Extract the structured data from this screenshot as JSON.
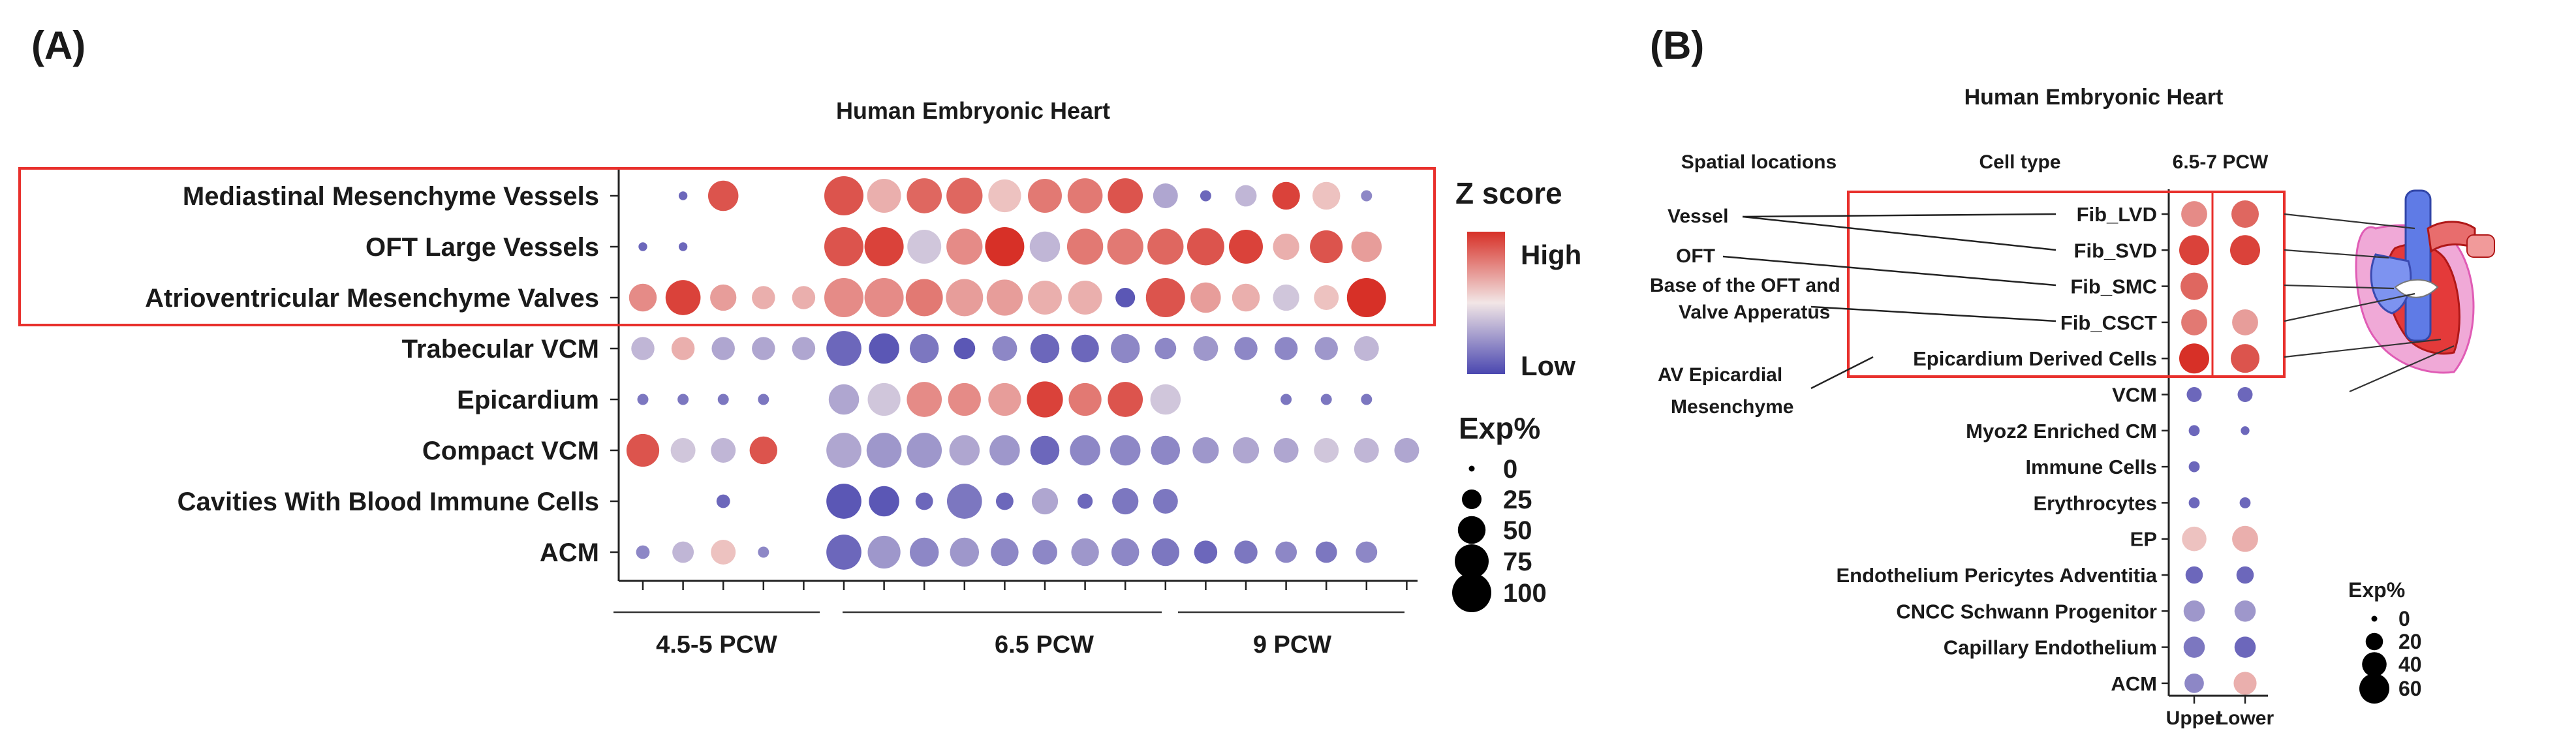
{
  "panel_a": {
    "panel_label": "(A)",
    "title": "Human Embryonic Heart",
    "legend": {
      "zscore_title": "Z score",
      "zscore_high": "High",
      "zscore_low": "Low",
      "exp_title": "Exp%",
      "exp_ticks": [
        "0",
        "25",
        "50",
        "75",
        "100"
      ]
    },
    "group_labels": [
      "4.5-5 PCW",
      "6.5 PCW",
      "9 PCW"
    ]
  },
  "panel_b": {
    "panel_label": "(B)",
    "title": "Human Embryonic Heart",
    "col_headers": [
      "Spatial locations",
      "Cell type",
      "6.5-7 PCW"
    ],
    "spatial_labels": [
      "Vessel",
      "OFT",
      "Base of the OFT and",
      "Valve Apperatus",
      "AV Epicardial",
      "Mesenchyme"
    ],
    "legend": {
      "exp_title": "Exp%",
      "exp_ticks": [
        "0",
        "20",
        "40",
        "60"
      ]
    }
  },
  "colors": {
    "high": "#d73027",
    "mid": "#f2e6e6",
    "low": "#4a47b0",
    "highlight_box": "#e8302c"
  },
  "chart_data": [
    {
      "type": "scatter",
      "subtype": "dot-plot",
      "title": "Human Embryonic Heart",
      "rows": [
        "Mediastinal Mesenchyme Vessels",
        "OFT Large Vessels",
        "Atrioventricular Mesenchyme Valves",
        "Trabecular VCM",
        "Epicardium",
        "Compact VCM",
        "Cavities With Blood Immune Cells",
        "ACM"
      ],
      "column_groups": [
        {
          "name": "4.5-5 PCW",
          "columns": 5
        },
        {
          "name": "6.5 PCW",
          "columns": 9
        },
        {
          "name": "9 PCW",
          "columns": 6
        }
      ],
      "highlighted_rows": [
        "Mediastinal Mesenchyme Vessels",
        "OFT Large Vessels",
        "Atrioventricular Mesenchyme Valves"
      ],
      "zscore": [
        [
          null,
          -0.8,
          0.8,
          null,
          null,
          0.8,
          0.3,
          0.7,
          0.7,
          0.2,
          0.6,
          0.6,
          0.8,
          -0.4,
          -0.8,
          -0.3,
          0.9,
          0.2,
          -0.6,
          null
        ],
        [
          -0.8,
          -0.8,
          null,
          null,
          null,
          0.8,
          0.9,
          -0.2,
          0.5,
          1.0,
          -0.3,
          0.6,
          0.6,
          0.7,
          0.8,
          0.9,
          0.3,
          0.8,
          0.4,
          null
        ],
        [
          0.5,
          0.9,
          0.4,
          0.3,
          0.3,
          0.5,
          0.5,
          0.6,
          0.4,
          0.4,
          0.3,
          0.3,
          -0.9,
          0.8,
          0.4,
          0.3,
          -0.2,
          0.2,
          1.0,
          null
        ],
        [
          -0.3,
          0.3,
          -0.4,
          -0.4,
          -0.4,
          -0.8,
          -0.9,
          -0.7,
          -0.9,
          -0.6,
          -0.8,
          -0.8,
          -0.6,
          -0.6,
          -0.5,
          -0.6,
          -0.6,
          -0.5,
          -0.3,
          null
        ],
        [
          -0.7,
          -0.7,
          -0.7,
          -0.7,
          null,
          -0.4,
          -0.2,
          0.5,
          0.5,
          0.4,
          0.9,
          0.6,
          0.8,
          -0.2,
          null,
          null,
          -0.7,
          -0.7,
          -0.7,
          null
        ],
        [
          0.8,
          -0.2,
          -0.3,
          0.8,
          null,
          -0.4,
          -0.5,
          -0.5,
          -0.4,
          -0.5,
          -0.8,
          -0.6,
          -0.6,
          -0.6,
          -0.5,
          -0.4,
          -0.4,
          -0.2,
          -0.3,
          -0.4
        ],
        [
          null,
          null,
          -0.8,
          null,
          null,
          -0.9,
          -0.9,
          -0.8,
          -0.7,
          -0.8,
          -0.4,
          -0.8,
          -0.7,
          -0.7,
          null,
          null,
          null,
          null,
          null,
          null
        ],
        [
          -0.6,
          -0.3,
          0.2,
          -0.6,
          null,
          -0.8,
          -0.5,
          -0.6,
          -0.5,
          -0.6,
          -0.6,
          -0.5,
          -0.6,
          -0.7,
          -0.8,
          -0.7,
          -0.6,
          -0.7,
          -0.6,
          null
        ]
      ],
      "exp_pct": [
        [
          0,
          5,
          60,
          0,
          0,
          100,
          75,
          80,
          85,
          70,
          75,
          80,
          80,
          40,
          8,
          30,
          50,
          50,
          8,
          0
        ],
        [
          5,
          5,
          0,
          0,
          0,
          100,
          100,
          75,
          85,
          100,
          60,
          85,
          85,
          85,
          90,
          75,
          45,
          70,
          60,
          0
        ],
        [
          50,
          80,
          45,
          35,
          35,
          100,
          100,
          90,
          90,
          85,
          75,
          75,
          25,
          100,
          60,
          50,
          45,
          40,
          100,
          0
        ],
        [
          35,
          35,
          35,
          35,
          35,
          80,
          60,
          55,
          30,
          40,
          55,
          50,
          55,
          30,
          40,
          35,
          35,
          35,
          40,
          0
        ],
        [
          8,
          8,
          8,
          8,
          0,
          60,
          70,
          80,
          70,
          70,
          85,
          70,
          80,
          60,
          0,
          0,
          8,
          8,
          8,
          0
        ],
        [
          70,
          40,
          40,
          50,
          0,
          80,
          80,
          80,
          60,
          60,
          55,
          60,
          60,
          55,
          45,
          45,
          40,
          40,
          40,
          40
        ],
        [
          0,
          0,
          12,
          0,
          0,
          80,
          60,
          20,
          80,
          20,
          45,
          15,
          45,
          40,
          0,
          0,
          0,
          0,
          0,
          0
        ],
        [
          12,
          30,
          40,
          8,
          0,
          80,
          70,
          55,
          55,
          50,
          40,
          50,
          50,
          50,
          35,
          35,
          30,
          30,
          30,
          0
        ]
      ],
      "legend_title": "Z score",
      "size_legend_title": "Exp%",
      "size_legend_values": [
        0,
        25,
        50,
        75,
        100
      ]
    },
    {
      "type": "scatter",
      "subtype": "dot-plot",
      "title": "Human Embryonic Heart",
      "rows": [
        "Fib_LVD",
        "Fib_SVD",
        "Fib_SMC",
        "Fib_CSCT",
        "Epicardium Derived Cells",
        "VCM",
        "Myoz2 Enriched CM",
        "Immune Cells",
        "Erythrocytes",
        "EP",
        "Endothelium Pericytes Adventitia",
        "CNCC Schwann Progenitor",
        "Capillary Endothelium",
        "ACM"
      ],
      "columns": [
        "Upper",
        "Lower"
      ],
      "column_group": "6.5-7 PCW",
      "highlighted_rows": [
        "Fib_LVD",
        "Fib_SVD",
        "Fib_SMC",
        "Fib_CSCT",
        "Epicardium Derived Cells"
      ],
      "zscore": [
        [
          0.5,
          0.7
        ],
        [
          0.9,
          0.9
        ],
        [
          0.7,
          null
        ],
        [
          0.6,
          0.4
        ],
        [
          1.0,
          0.8
        ],
        [
          -0.8,
          -0.8
        ],
        [
          -0.8,
          -0.8
        ],
        [
          -0.8,
          null
        ],
        [
          -0.8,
          -0.8
        ],
        [
          0.2,
          0.3
        ],
        [
          -0.8,
          -0.8
        ],
        [
          -0.5,
          -0.5
        ],
        [
          -0.7,
          -0.8
        ],
        [
          -0.6,
          0.3
        ]
      ],
      "exp_pct": [
        [
          45,
          50
        ],
        [
          60,
          60
        ],
        [
          50,
          0
        ],
        [
          45,
          45
        ],
        [
          60,
          55
        ],
        [
          15,
          15
        ],
        [
          8,
          5
        ],
        [
          8,
          0
        ],
        [
          8,
          8
        ],
        [
          40,
          45
        ],
        [
          20,
          20
        ],
        [
          30,
          30
        ],
        [
          30,
          30
        ],
        [
          25,
          35
        ]
      ],
      "size_legend_title": "Exp%",
      "size_legend_values": [
        0,
        20,
        40,
        60
      ]
    }
  ]
}
